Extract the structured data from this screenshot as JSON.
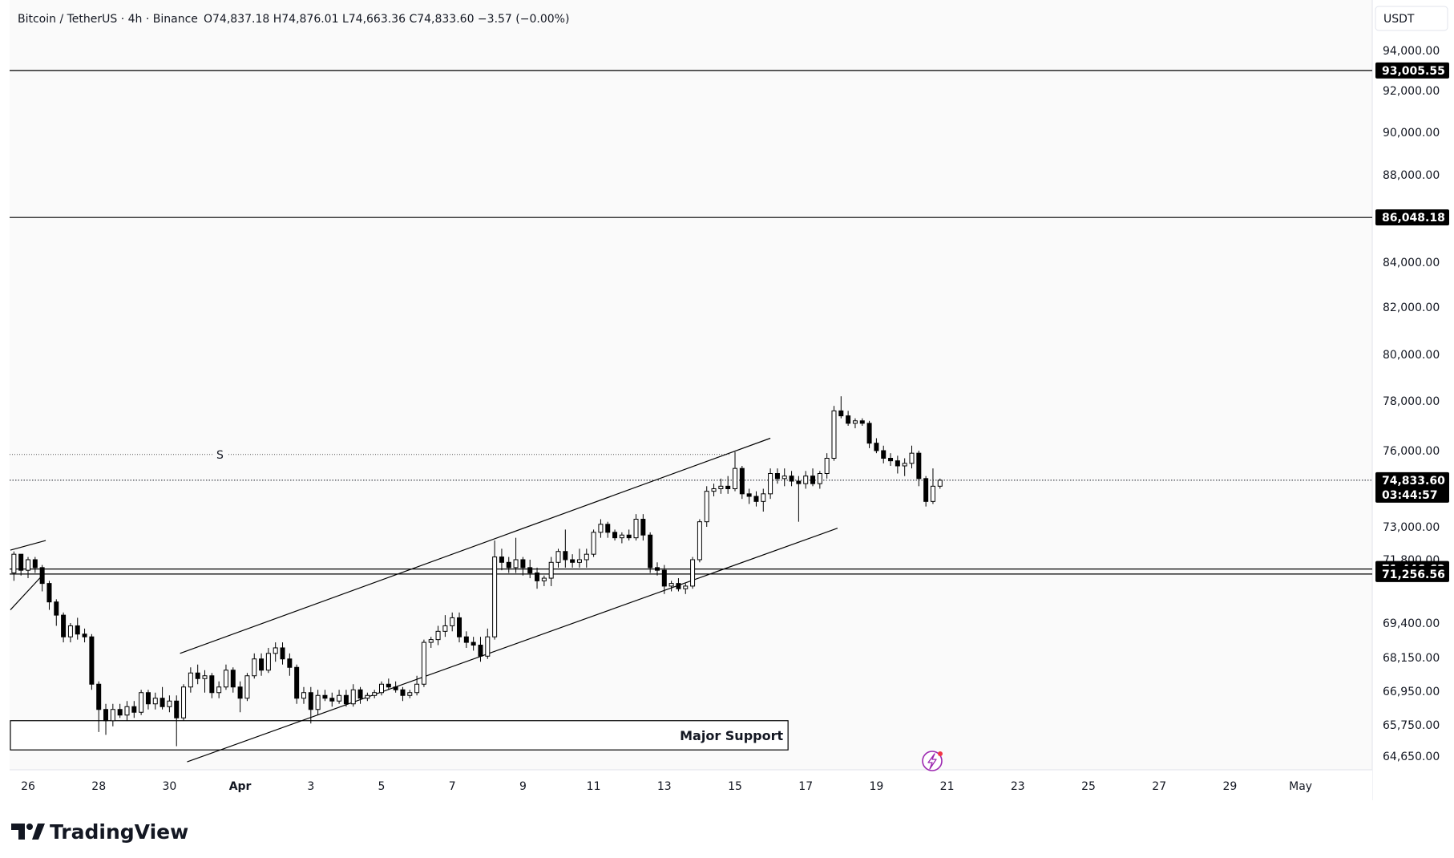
{
  "header": {
    "symbol": "Bitcoin / TetherUS · 4h · Binance",
    "ohlc": "O74,837.18  H74,876.01  L74,663.36  C74,833.60  −3.57 (−0.00%)"
  },
  "currency_label": "USDT",
  "brand": "TradingView",
  "flash_icon": "lightning-icon",
  "colors": {
    "background": "#fafafa",
    "axis_bg": "#ffffff",
    "grid_border": "#e0e3eb",
    "candle": "#000000",
    "line": "#000000",
    "badge": "#000000"
  },
  "chart_data": {
    "type": "candlestick",
    "symbol": "Bitcoin / TetherUS",
    "interval": "4h",
    "exchange": "Binance",
    "grid": false,
    "y_axis": {
      "position": "right",
      "ticks": [
        {
          "value": 94000,
          "label": "94,000.00"
        },
        {
          "value": 92000,
          "label": "92,000.00"
        },
        {
          "value": 90000,
          "label": "90,000.00"
        },
        {
          "value": 88000,
          "label": "88,000.00"
        },
        {
          "value": 84000,
          "label": "84,000.00"
        },
        {
          "value": 82000,
          "label": "82,000.00"
        },
        {
          "value": 80000,
          "label": "80,000.00"
        },
        {
          "value": 78000,
          "label": "78,000.00"
        },
        {
          "value": 76000,
          "label": "76,000.00"
        },
        {
          "value": 73000,
          "label": "73,000.00"
        },
        {
          "value": 71800,
          "label": "71,800.00"
        },
        {
          "value": 69400,
          "label": "69,400.00"
        },
        {
          "value": 68150,
          "label": "68,150.00"
        },
        {
          "value": 66950,
          "label": "66,950.00"
        },
        {
          "value": 65750,
          "label": "65,750.00"
        },
        {
          "value": 64650,
          "label": "64,650.00"
        }
      ]
    },
    "x_axis": {
      "ticks": [
        {
          "day": 26,
          "label": "26"
        },
        {
          "day": 28,
          "label": "28"
        },
        {
          "day": 30,
          "label": "30"
        },
        {
          "day": 32,
          "label": "Apr"
        },
        {
          "day": 34,
          "label": "3"
        },
        {
          "day": 36,
          "label": "5"
        },
        {
          "day": 38,
          "label": "7"
        },
        {
          "day": 40,
          "label": "9"
        },
        {
          "day": 42,
          "label": "11"
        },
        {
          "day": 44,
          "label": "13"
        },
        {
          "day": 46,
          "label": "15"
        },
        {
          "day": 48,
          "label": "17"
        },
        {
          "day": 50,
          "label": "19"
        },
        {
          "day": 52,
          "label": "21"
        },
        {
          "day": 54,
          "label": "23"
        },
        {
          "day": 56,
          "label": "25"
        },
        {
          "day": 58,
          "label": "27"
        },
        {
          "day": 60,
          "label": "29"
        },
        {
          "day": 62,
          "label": "May"
        }
      ]
    },
    "horizontal_levels": [
      {
        "value": 93005.55,
        "label": "93,005.55"
      },
      {
        "value": 86048.18,
        "label": "86,048.18"
      },
      {
        "value": 71446.62,
        "label": "71,446.62"
      },
      {
        "value": 71256.56,
        "label": "71,256.56"
      }
    ],
    "last_price": {
      "value": 74833.6,
      "label": "74,833.60",
      "countdown": "03:44:57"
    },
    "dotted_level": {
      "value": 75850,
      "marker": "S"
    },
    "support_zone": {
      "label": "Major Support",
      "from_day": 25.5,
      "to_day": 47.5,
      "top": 65900,
      "bottom": 64870
    },
    "channel": {
      "upper": [
        {
          "day": 30.3,
          "value": 68300
        },
        {
          "day": 47.0,
          "value": 76500
        }
      ],
      "lower": [
        {
          "day": 30.5,
          "value": 64450
        },
        {
          "day": 48.9,
          "value": 72950
        }
      ]
    },
    "left_lines": [
      [
        {
          "day": 25.5,
          "value": 69900
        },
        {
          "day": 26.4,
          "value": 71200
        }
      ],
      [
        {
          "day": 25.5,
          "value": 72150
        },
        {
          "day": 26.5,
          "value": 72500
        }
      ]
    ],
    "candles": [
      {
        "t": 25.6,
        "o": 71300,
        "h": 72100,
        "l": 71000,
        "c": 72000
      },
      {
        "t": 25.8,
        "o": 72000,
        "h": 72000,
        "l": 71200,
        "c": 71400
      },
      {
        "t": 26.0,
        "o": 71400,
        "h": 71900,
        "l": 71100,
        "c": 71800
      },
      {
        "t": 26.2,
        "o": 71800,
        "h": 71900,
        "l": 71300,
        "c": 71500
      },
      {
        "t": 26.4,
        "o": 71500,
        "h": 71600,
        "l": 70600,
        "c": 70900
      },
      {
        "t": 26.6,
        "o": 70900,
        "h": 71000,
        "l": 69900,
        "c": 70200
      },
      {
        "t": 26.8,
        "o": 70200,
        "h": 70300,
        "l": 69300,
        "c": 69700
      },
      {
        "t": 27.0,
        "o": 69700,
        "h": 69800,
        "l": 68700,
        "c": 68900
      },
      {
        "t": 27.2,
        "o": 68900,
        "h": 69400,
        "l": 68700,
        "c": 69300
      },
      {
        "t": 27.4,
        "o": 69300,
        "h": 69600,
        "l": 68800,
        "c": 69000
      },
      {
        "t": 27.6,
        "o": 69000,
        "h": 69200,
        "l": 68700,
        "c": 68900
      },
      {
        "t": 27.8,
        "o": 68900,
        "h": 69000,
        "l": 67000,
        "c": 67200
      },
      {
        "t": 28.0,
        "o": 67200,
        "h": 67300,
        "l": 65500,
        "c": 66300
      },
      {
        "t": 28.2,
        "o": 66300,
        "h": 66500,
        "l": 65400,
        "c": 65900
      },
      {
        "t": 28.4,
        "o": 65900,
        "h": 66500,
        "l": 65700,
        "c": 66300
      },
      {
        "t": 28.6,
        "o": 66300,
        "h": 66500,
        "l": 66000,
        "c": 66100
      },
      {
        "t": 28.8,
        "o": 66100,
        "h": 66600,
        "l": 65900,
        "c": 66400
      },
      {
        "t": 29.0,
        "o": 66400,
        "h": 66600,
        "l": 66000,
        "c": 66200
      },
      {
        "t": 29.2,
        "o": 66200,
        "h": 67000,
        "l": 66100,
        "c": 66900
      },
      {
        "t": 29.4,
        "o": 66900,
        "h": 67000,
        "l": 66300,
        "c": 66500
      },
      {
        "t": 29.6,
        "o": 66500,
        "h": 66900,
        "l": 66300,
        "c": 66700
      },
      {
        "t": 29.8,
        "o": 66700,
        "h": 67100,
        "l": 66300,
        "c": 66400
      },
      {
        "t": 30.0,
        "o": 66400,
        "h": 66800,
        "l": 66200,
        "c": 66600
      },
      {
        "t": 30.2,
        "o": 66600,
        "h": 66800,
        "l": 65000,
        "c": 66000
      },
      {
        "t": 30.4,
        "o": 66000,
        "h": 67200,
        "l": 65900,
        "c": 67100
      },
      {
        "t": 30.6,
        "o": 67100,
        "h": 67800,
        "l": 66900,
        "c": 67600
      },
      {
        "t": 30.8,
        "o": 67600,
        "h": 67900,
        "l": 67200,
        "c": 67400
      },
      {
        "t": 31.0,
        "o": 67400,
        "h": 67700,
        "l": 66900,
        "c": 67500
      },
      {
        "t": 31.2,
        "o": 67500,
        "h": 67600,
        "l": 66700,
        "c": 66900
      },
      {
        "t": 31.4,
        "o": 66900,
        "h": 67300,
        "l": 66700,
        "c": 67100
      },
      {
        "t": 31.6,
        "o": 67100,
        "h": 67900,
        "l": 67000,
        "c": 67700
      },
      {
        "t": 31.8,
        "o": 67700,
        "h": 67800,
        "l": 66900,
        "c": 67100
      },
      {
        "t": 32.0,
        "o": 67100,
        "h": 67300,
        "l": 66200,
        "c": 66700
      },
      {
        "t": 32.2,
        "o": 66700,
        "h": 67600,
        "l": 66600,
        "c": 67500
      },
      {
        "t": 32.4,
        "o": 67500,
        "h": 68300,
        "l": 67400,
        "c": 68100
      },
      {
        "t": 32.6,
        "o": 68100,
        "h": 68300,
        "l": 67500,
        "c": 67700
      },
      {
        "t": 32.8,
        "o": 67700,
        "h": 68500,
        "l": 67600,
        "c": 68300
      },
      {
        "t": 33.0,
        "o": 68300,
        "h": 68700,
        "l": 68000,
        "c": 68500
      },
      {
        "t": 33.2,
        "o": 68500,
        "h": 68700,
        "l": 67900,
        "c": 68100
      },
      {
        "t": 33.4,
        "o": 68100,
        "h": 68300,
        "l": 67500,
        "c": 67800
      },
      {
        "t": 33.6,
        "o": 67800,
        "h": 67900,
        "l": 66500,
        "c": 66700
      },
      {
        "t": 33.8,
        "o": 66700,
        "h": 67100,
        "l": 66500,
        "c": 66900
      },
      {
        "t": 34.0,
        "o": 66900,
        "h": 67100,
        "l": 65800,
        "c": 66300
      },
      {
        "t": 34.2,
        "o": 66300,
        "h": 67000,
        "l": 66100,
        "c": 66800
      },
      {
        "t": 34.4,
        "o": 66800,
        "h": 67000,
        "l": 66600,
        "c": 66700
      },
      {
        "t": 34.6,
        "o": 66700,
        "h": 66900,
        "l": 66400,
        "c": 66600
      },
      {
        "t": 34.8,
        "o": 66600,
        "h": 67000,
        "l": 66500,
        "c": 66800
      },
      {
        "t": 35.0,
        "o": 66800,
        "h": 67000,
        "l": 66400,
        "c": 66500
      },
      {
        "t": 35.2,
        "o": 66500,
        "h": 67200,
        "l": 66400,
        "c": 67000
      },
      {
        "t": 35.4,
        "o": 67000,
        "h": 67100,
        "l": 66500,
        "c": 66700
      },
      {
        "t": 35.6,
        "o": 66700,
        "h": 66900,
        "l": 66600,
        "c": 66800
      },
      {
        "t": 35.8,
        "o": 66800,
        "h": 67000,
        "l": 66700,
        "c": 66900
      },
      {
        "t": 36.0,
        "o": 66900,
        "h": 67300,
        "l": 66800,
        "c": 67200
      },
      {
        "t": 36.2,
        "o": 67200,
        "h": 67400,
        "l": 67000,
        "c": 67100
      },
      {
        "t": 36.4,
        "o": 67100,
        "h": 67300,
        "l": 66900,
        "c": 67000
      },
      {
        "t": 36.6,
        "o": 67000,
        "h": 67100,
        "l": 66600,
        "c": 66800
      },
      {
        "t": 36.8,
        "o": 66800,
        "h": 67000,
        "l": 66700,
        "c": 66900
      },
      {
        "t": 37.0,
        "o": 66900,
        "h": 67500,
        "l": 66800,
        "c": 67200
      },
      {
        "t": 37.2,
        "o": 67200,
        "h": 68800,
        "l": 67100,
        "c": 68700
      },
      {
        "t": 37.4,
        "o": 68700,
        "h": 68900,
        "l": 68500,
        "c": 68800
      },
      {
        "t": 37.6,
        "o": 68800,
        "h": 69300,
        "l": 68600,
        "c": 69100
      },
      {
        "t": 37.8,
        "o": 69100,
        "h": 69700,
        "l": 68900,
        "c": 69300
      },
      {
        "t": 38.0,
        "o": 69300,
        "h": 69800,
        "l": 69100,
        "c": 69600
      },
      {
        "t": 38.2,
        "o": 69600,
        "h": 69800,
        "l": 68700,
        "c": 68900
      },
      {
        "t": 38.4,
        "o": 68900,
        "h": 69100,
        "l": 68500,
        "c": 68700
      },
      {
        "t": 38.6,
        "o": 68700,
        "h": 68900,
        "l": 68400,
        "c": 68600
      },
      {
        "t": 38.8,
        "o": 68600,
        "h": 68900,
        "l": 68000,
        "c": 68200
      },
      {
        "t": 39.0,
        "o": 68200,
        "h": 69200,
        "l": 68100,
        "c": 68900
      },
      {
        "t": 39.2,
        "o": 68900,
        "h": 72500,
        "l": 68800,
        "c": 71900
      },
      {
        "t": 39.4,
        "o": 71900,
        "h": 72200,
        "l": 71400,
        "c": 71700
      },
      {
        "t": 39.6,
        "o": 71700,
        "h": 71900,
        "l": 71300,
        "c": 71500
      },
      {
        "t": 39.8,
        "o": 71500,
        "h": 72600,
        "l": 71300,
        "c": 71800
      },
      {
        "t": 40.0,
        "o": 71800,
        "h": 71900,
        "l": 71200,
        "c": 71500
      },
      {
        "t": 40.2,
        "o": 71500,
        "h": 71800,
        "l": 71100,
        "c": 71300
      },
      {
        "t": 40.4,
        "o": 71300,
        "h": 71500,
        "l": 70700,
        "c": 71000
      },
      {
        "t": 40.6,
        "o": 71000,
        "h": 71200,
        "l": 70800,
        "c": 71100
      },
      {
        "t": 40.8,
        "o": 71100,
        "h": 71900,
        "l": 70800,
        "c": 71700
      },
      {
        "t": 41.0,
        "o": 71700,
        "h": 72200,
        "l": 71500,
        "c": 72100
      },
      {
        "t": 41.2,
        "o": 72100,
        "h": 72900,
        "l": 71500,
        "c": 71800
      },
      {
        "t": 41.4,
        "o": 71800,
        "h": 72000,
        "l": 71500,
        "c": 71700
      },
      {
        "t": 41.6,
        "o": 71700,
        "h": 72200,
        "l": 71500,
        "c": 71800
      },
      {
        "t": 41.8,
        "o": 71800,
        "h": 72200,
        "l": 71500,
        "c": 72000
      },
      {
        "t": 42.0,
        "o": 72000,
        "h": 72900,
        "l": 71900,
        "c": 72800
      },
      {
        "t": 42.2,
        "o": 72800,
        "h": 73300,
        "l": 72600,
        "c": 73100
      },
      {
        "t": 42.4,
        "o": 73100,
        "h": 73200,
        "l": 72600,
        "c": 72800
      },
      {
        "t": 42.6,
        "o": 72800,
        "h": 72900,
        "l": 72500,
        "c": 72600
      },
      {
        "t": 42.8,
        "o": 72600,
        "h": 72800,
        "l": 72400,
        "c": 72700
      },
      {
        "t": 43.0,
        "o": 72700,
        "h": 72900,
        "l": 72500,
        "c": 72600
      },
      {
        "t": 43.2,
        "o": 72600,
        "h": 73500,
        "l": 72500,
        "c": 73300
      },
      {
        "t": 43.4,
        "o": 73300,
        "h": 73500,
        "l": 72500,
        "c": 72700
      },
      {
        "t": 43.6,
        "o": 72700,
        "h": 72800,
        "l": 71300,
        "c": 71500
      },
      {
        "t": 43.8,
        "o": 71500,
        "h": 71700,
        "l": 71200,
        "c": 71400
      },
      {
        "t": 44.0,
        "o": 71400,
        "h": 71600,
        "l": 70500,
        "c": 70800
      },
      {
        "t": 44.2,
        "o": 70800,
        "h": 71000,
        "l": 70600,
        "c": 70900
      },
      {
        "t": 44.4,
        "o": 70900,
        "h": 71100,
        "l": 70600,
        "c": 70700
      },
      {
        "t": 44.6,
        "o": 70700,
        "h": 70900,
        "l": 70500,
        "c": 70800
      },
      {
        "t": 44.8,
        "o": 70800,
        "h": 71900,
        "l": 70700,
        "c": 71800
      },
      {
        "t": 45.0,
        "o": 71800,
        "h": 73300,
        "l": 71700,
        "c": 73200
      },
      {
        "t": 45.2,
        "o": 73200,
        "h": 74600,
        "l": 73000,
        "c": 74400
      },
      {
        "t": 45.4,
        "o": 74400,
        "h": 74700,
        "l": 74200,
        "c": 74500
      },
      {
        "t": 45.6,
        "o": 74500,
        "h": 74900,
        "l": 74300,
        "c": 74600
      },
      {
        "t": 45.8,
        "o": 74600,
        "h": 75000,
        "l": 74300,
        "c": 74500
      },
      {
        "t": 46.0,
        "o": 74500,
        "h": 75950,
        "l": 74400,
        "c": 75300
      },
      {
        "t": 46.2,
        "o": 75300,
        "h": 75400,
        "l": 74100,
        "c": 74300
      },
      {
        "t": 46.4,
        "o": 74300,
        "h": 74500,
        "l": 73900,
        "c": 74200
      },
      {
        "t": 46.6,
        "o": 74200,
        "h": 74400,
        "l": 73800,
        "c": 74000
      },
      {
        "t": 46.8,
        "o": 74000,
        "h": 74500,
        "l": 73600,
        "c": 74300
      },
      {
        "t": 47.0,
        "o": 74300,
        "h": 75300,
        "l": 74100,
        "c": 75100
      },
      {
        "t": 47.2,
        "o": 75100,
        "h": 75300,
        "l": 74700,
        "c": 74900
      },
      {
        "t": 47.4,
        "o": 74900,
        "h": 75300,
        "l": 74600,
        "c": 75000
      },
      {
        "t": 47.6,
        "o": 75000,
        "h": 75200,
        "l": 74600,
        "c": 74800
      },
      {
        "t": 47.8,
        "o": 74800,
        "h": 75000,
        "l": 73200,
        "c": 74700
      },
      {
        "t": 48.0,
        "o": 74700,
        "h": 75200,
        "l": 74500,
        "c": 75000
      },
      {
        "t": 48.2,
        "o": 75000,
        "h": 75300,
        "l": 74600,
        "c": 74700
      },
      {
        "t": 48.4,
        "o": 74700,
        "h": 75200,
        "l": 74500,
        "c": 75100
      },
      {
        "t": 48.6,
        "o": 75100,
        "h": 75900,
        "l": 74900,
        "c": 75700
      },
      {
        "t": 48.8,
        "o": 75700,
        "h": 77800,
        "l": 75600,
        "c": 77600
      },
      {
        "t": 49.0,
        "o": 77600,
        "h": 78200,
        "l": 77300,
        "c": 77400
      },
      {
        "t": 49.2,
        "o": 77400,
        "h": 77600,
        "l": 77000,
        "c": 77100
      },
      {
        "t": 49.4,
        "o": 77100,
        "h": 77300,
        "l": 76900,
        "c": 77200
      },
      {
        "t": 49.6,
        "o": 77200,
        "h": 77300,
        "l": 77000,
        "c": 77100
      },
      {
        "t": 49.8,
        "o": 77100,
        "h": 77200,
        "l": 76100,
        "c": 76300
      },
      {
        "t": 50.0,
        "o": 76300,
        "h": 76500,
        "l": 75900,
        "c": 76000
      },
      {
        "t": 50.2,
        "o": 76000,
        "h": 76200,
        "l": 75500,
        "c": 75700
      },
      {
        "t": 50.4,
        "o": 75700,
        "h": 75900,
        "l": 75400,
        "c": 75600
      },
      {
        "t": 50.6,
        "o": 75600,
        "h": 75800,
        "l": 75100,
        "c": 75400
      },
      {
        "t": 50.8,
        "o": 75400,
        "h": 75700,
        "l": 75000,
        "c": 75500
      },
      {
        "t": 51.0,
        "o": 75500,
        "h": 76200,
        "l": 75300,
        "c": 75900
      },
      {
        "t": 51.2,
        "o": 75900,
        "h": 76000,
        "l": 74600,
        "c": 74900
      },
      {
        "t": 51.4,
        "o": 74900,
        "h": 75000,
        "l": 73800,
        "c": 74000
      },
      {
        "t": 51.6,
        "o": 74000,
        "h": 75300,
        "l": 73900,
        "c": 74600
      },
      {
        "t": 51.8,
        "o": 74600,
        "h": 74900,
        "l": 74500,
        "c": 74834
      }
    ]
  }
}
